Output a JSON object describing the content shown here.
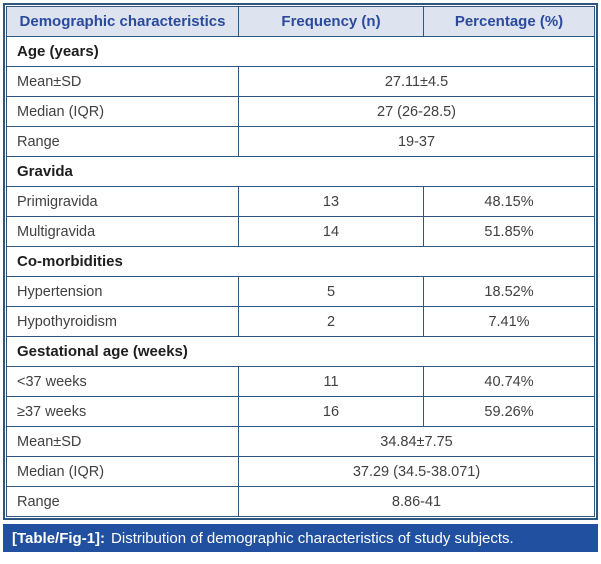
{
  "table": {
    "columns": [
      "Demographic characteristics",
      "Frequency (n)",
      "Percentage (%)"
    ],
    "rows": [
      {
        "type": "section",
        "label": "Age (years)"
      },
      {
        "type": "merged",
        "label": "Mean±SD",
        "value": "27.11±4.5"
      },
      {
        "type": "merged",
        "label": "Median (IQR)",
        "value": "27 (26-28.5)"
      },
      {
        "type": "merged",
        "label": "Range",
        "value": "19-37"
      },
      {
        "type": "section",
        "label": "Gravida"
      },
      {
        "type": "data",
        "label": "Primigravida",
        "frequency": "13",
        "percentage": "48.15%"
      },
      {
        "type": "data",
        "label": "Multigravida",
        "frequency": "14",
        "percentage": "51.85%"
      },
      {
        "type": "section",
        "label": "Co-morbidities"
      },
      {
        "type": "data",
        "label": "Hypertension",
        "frequency": "5",
        "percentage": "18.52%"
      },
      {
        "type": "data",
        "label": "Hypothyroidism",
        "frequency": "2",
        "percentage": "7.41%"
      },
      {
        "type": "section",
        "label": "Gestational age (weeks)"
      },
      {
        "type": "data",
        "label": "<37 weeks",
        "frequency": "11",
        "percentage": "40.74%"
      },
      {
        "type": "data",
        "label": "≥37 weeks",
        "frequency": "16",
        "percentage": "59.26%"
      },
      {
        "type": "merged",
        "label": "Mean±SD",
        "value": "34.84±7.75"
      },
      {
        "type": "merged",
        "label": "Median (IQR)",
        "value": "37.29 (34.5-38.071)"
      },
      {
        "type": "merged",
        "label": "Range",
        "value": "8.86-41"
      }
    ],
    "caption": {
      "tag": "[Table/Fig-1]:",
      "text": "Distribution of demographic characteristics of study subjects."
    }
  },
  "colors": {
    "border": "#2e567e",
    "header_bg": "#dde3ef",
    "header_text": "#2b4a9c",
    "body_text": "#414042",
    "section_text": "#1e1e1e",
    "caption_bg": "#20509f",
    "caption_text": "#ffffff"
  }
}
